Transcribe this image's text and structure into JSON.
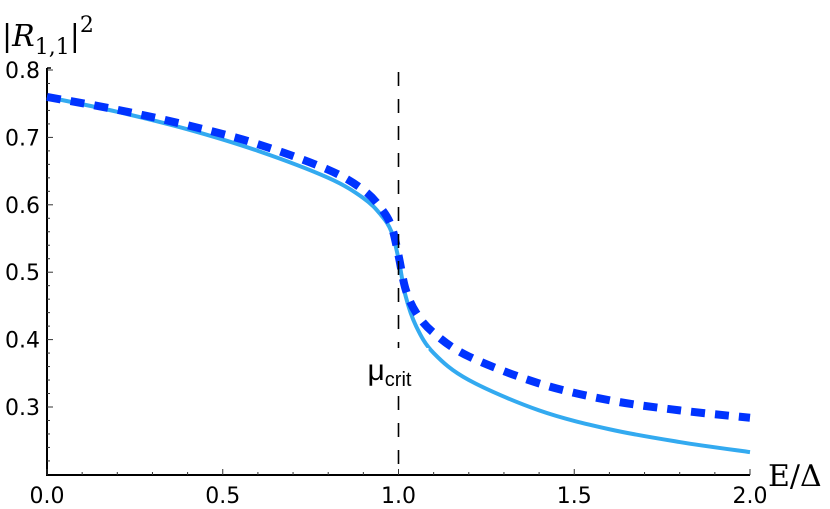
{
  "chart_data": {
    "type": "line",
    "title": "",
    "xlabel": "E/Δ",
    "ylabel": "|R_{1,1}|^2",
    "xlim": [
      0.0,
      2.0
    ],
    "ylim": [
      0.2,
      0.8
    ],
    "grid": false,
    "legend": null,
    "x_ticks": [
      "0.0",
      "0.5",
      "1.0",
      "1.5",
      "2.0"
    ],
    "y_ticks": [
      "0.3",
      "0.4",
      "0.5",
      "0.6",
      "0.7",
      "0.8"
    ],
    "x": [
      0.0,
      0.2,
      0.4,
      0.6,
      0.8,
      0.9,
      0.95,
      0.98,
      1.0,
      1.02,
      1.05,
      1.1,
      1.2,
      1.4,
      1.6,
      1.8,
      2.0
    ],
    "series": [
      {
        "name": "solid (light blue)",
        "style": "solid",
        "color": "#33aaf0",
        "values": [
          0.76,
          0.738,
          0.712,
          0.68,
          0.64,
          0.61,
          0.585,
          0.56,
          0.52,
          0.465,
          0.42,
          0.38,
          0.34,
          0.295,
          0.267,
          0.248,
          0.233
        ]
      },
      {
        "name": "dashed (blue)",
        "style": "dashed",
        "color": "#0033ff",
        "values": [
          0.76,
          0.741,
          0.718,
          0.69,
          0.652,
          0.622,
          0.595,
          0.568,
          0.525,
          0.475,
          0.44,
          0.41,
          0.375,
          0.335,
          0.31,
          0.295,
          0.284
        ]
      }
    ],
    "annotations": [
      {
        "text": "μ_crit",
        "x": 1.0,
        "type": "vertical dashed line",
        "color": "#000000"
      }
    ]
  },
  "labels": {
    "ylabel_main": "|R",
    "ylabel_sub": "1,1",
    "ylabel_close": "|",
    "ylabel_sup": "2",
    "xlabel": "E/Δ",
    "mu": "μ",
    "mu_sub": "crit"
  }
}
